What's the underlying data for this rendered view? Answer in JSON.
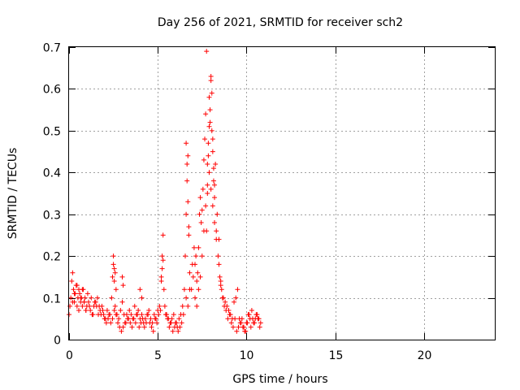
{
  "chart_data": {
    "type": "scatter",
    "title": "Day 256 of 2021, SRMTID for receiver sch2",
    "xlabel": "GPS time / hours",
    "ylabel": "SRMTID / TECUs",
    "xlim": [
      0,
      24
    ],
    "ylim": [
      0,
      0.7
    ],
    "x_ticks": [
      0,
      5,
      10,
      15,
      20
    ],
    "x_tick_labels": [
      "0",
      "5",
      "10",
      "15",
      "20"
    ],
    "y_ticks": [
      0,
      0.1,
      0.2,
      0.3,
      0.4,
      0.5,
      0.6,
      0.7
    ],
    "y_tick_labels": [
      "0",
      "0.1",
      "0.2",
      "0.3",
      "0.4",
      "0.5",
      "0.6",
      "0.7"
    ],
    "grid": true,
    "marker": "+",
    "color": "#ff0000",
    "series": [
      {
        "name": "sch2",
        "x": [
          0.0,
          0.1,
          0.15,
          0.2,
          0.25,
          0.3,
          0.35,
          0.4,
          0.45,
          0.5,
          0.55,
          0.6,
          0.65,
          0.7,
          0.75,
          0.8,
          0.85,
          0.9,
          0.95,
          1.0,
          1.1,
          1.2,
          1.3,
          1.4,
          1.5,
          1.6,
          1.7,
          1.8,
          1.9,
          2.0,
          2.1,
          2.2,
          2.3,
          2.4,
          2.45,
          2.5,
          2.55,
          2.6,
          2.7,
          2.8,
          2.9,
          3.0,
          3.1,
          3.2,
          3.3,
          3.4,
          3.5,
          3.6,
          3.7,
          3.8,
          3.9,
          4.0,
          4.1,
          4.2,
          4.3,
          4.4,
          4.5,
          4.6,
          4.7,
          4.8,
          4.9,
          5.0,
          5.1,
          5.2,
          5.25,
          5.3,
          5.35,
          5.4,
          5.5,
          5.6,
          5.7,
          5.8,
          5.9,
          6.0,
          6.1,
          6.2,
          6.3,
          6.4,
          6.5,
          6.55,
          6.6,
          6.65,
          6.7,
          6.75,
          6.8,
          6.9,
          7.0,
          7.05,
          7.1,
          7.15,
          7.2,
          7.25,
          7.3,
          7.35,
          7.4,
          7.45,
          7.5,
          7.55,
          7.6,
          7.65,
          7.7,
          7.75,
          7.8,
          7.85,
          7.9,
          7.95,
          8.0,
          8.05,
          8.1,
          8.15,
          8.2,
          8.25,
          8.3,
          8.35,
          8.4,
          8.45,
          8.5,
          8.55,
          8.6,
          8.7,
          8.8,
          8.9,
          9.0,
          9.1,
          9.2,
          9.3,
          9.4,
          9.5,
          9.6,
          9.7,
          9.8,
          9.9,
          10.0,
          10.1,
          10.2,
          10.3,
          10.4,
          10.5,
          10.6,
          10.7,
          10.8,
          0.05,
          0.2,
          0.3,
          0.45,
          0.55,
          0.65,
          0.75,
          0.85,
          0.95,
          1.05,
          1.15,
          1.25,
          1.35,
          1.45,
          1.55,
          1.65,
          1.75,
          1.85,
          1.95,
          2.05,
          2.15,
          2.25,
          2.35,
          2.45,
          2.55,
          2.65,
          2.75,
          2.85,
          2.95,
          3.05,
          3.15,
          3.25,
          3.35,
          3.45,
          3.55,
          3.65,
          3.75,
          3.85,
          3.95,
          4.05,
          4.15,
          4.25,
          4.35,
          4.45,
          4.55,
          4.65,
          4.75,
          4.85,
          4.95,
          5.05,
          5.15,
          5.45,
          5.55,
          5.65,
          5.75,
          5.85,
          5.95,
          6.05,
          6.15,
          6.25,
          6.35,
          6.45,
          6.6,
          6.7,
          6.8,
          6.95,
          7.1,
          7.2,
          7.3,
          7.4,
          7.5,
          7.6,
          7.7,
          7.8,
          7.9,
          8.0,
          8.1,
          8.2,
          8.3,
          8.45,
          8.55,
          8.65,
          8.75,
          8.85,
          8.95,
          9.05,
          9.15,
          9.25,
          9.35,
          9.45,
          9.55,
          9.65,
          9.75,
          9.85,
          9.95,
          10.05,
          10.15,
          10.25,
          10.35,
          10.45,
          10.55,
          10.65,
          10.75,
          2.5,
          2.55,
          2.6,
          2.65,
          3.0,
          3.05,
          4.0,
          4.1,
          5.2,
          5.25,
          5.3,
          6.6,
          6.65,
          6.7,
          6.75,
          7.75,
          7.8,
          7.85,
          7.9,
          7.95,
          8.0,
          8.05,
          8.1,
          8.15,
          8.2
        ],
        "y": [
          0.06,
          0.1,
          0.14,
          0.16,
          0.12,
          0.09,
          0.11,
          0.13,
          0.08,
          0.1,
          0.12,
          0.11,
          0.09,
          0.1,
          0.08,
          0.12,
          0.09,
          0.1,
          0.07,
          0.08,
          0.09,
          0.07,
          0.06,
          0.08,
          0.09,
          0.1,
          0.08,
          0.06,
          0.07,
          0.05,
          0.04,
          0.05,
          0.06,
          0.1,
          0.15,
          0.2,
          0.17,
          0.08,
          0.06,
          0.05,
          0.07,
          0.09,
          0.06,
          0.04,
          0.05,
          0.07,
          0.06,
          0.05,
          0.08,
          0.06,
          0.07,
          0.05,
          0.06,
          0.04,
          0.05,
          0.06,
          0.07,
          0.05,
          0.04,
          0.06,
          0.05,
          0.07,
          0.08,
          0.15,
          0.2,
          0.25,
          0.12,
          0.08,
          0.06,
          0.05,
          0.04,
          0.05,
          0.06,
          0.04,
          0.03,
          0.05,
          0.06,
          0.08,
          0.12,
          0.2,
          0.3,
          0.38,
          0.44,
          0.25,
          0.16,
          0.12,
          0.15,
          0.22,
          0.18,
          0.2,
          0.14,
          0.16,
          0.22,
          0.3,
          0.34,
          0.28,
          0.31,
          0.36,
          0.43,
          0.48,
          0.54,
          0.69,
          0.42,
          0.47,
          0.58,
          0.52,
          0.63,
          0.5,
          0.45,
          0.38,
          0.34,
          0.42,
          0.26,
          0.3,
          0.2,
          0.24,
          0.15,
          0.13,
          0.12,
          0.1,
          0.09,
          0.08,
          0.07,
          0.06,
          0.05,
          0.09,
          0.1,
          0.12,
          0.05,
          0.04,
          0.03,
          0.02,
          0.04,
          0.06,
          0.05,
          0.07,
          0.04,
          0.05,
          0.06,
          0.05,
          0.04,
          0.08,
          0.09,
          0.11,
          0.13,
          0.07,
          0.1,
          0.12,
          0.09,
          0.07,
          0.11,
          0.08,
          0.1,
          0.06,
          0.09,
          0.08,
          0.06,
          0.07,
          0.08,
          0.06,
          0.05,
          0.07,
          0.06,
          0.04,
          0.05,
          0.07,
          0.06,
          0.04,
          0.03,
          0.02,
          0.03,
          0.04,
          0.06,
          0.05,
          0.04,
          0.03,
          0.05,
          0.04,
          0.06,
          0.03,
          0.04,
          0.05,
          0.03,
          0.04,
          0.06,
          0.04,
          0.03,
          0.02,
          0.05,
          0.04,
          0.06,
          0.07,
          0.06,
          0.05,
          0.03,
          0.04,
          0.02,
          0.03,
          0.04,
          0.02,
          0.03,
          0.04,
          0.06,
          0.1,
          0.08,
          0.12,
          0.18,
          0.1,
          0.08,
          0.12,
          0.15,
          0.2,
          0.26,
          0.32,
          0.37,
          0.4,
          0.36,
          0.32,
          0.28,
          0.24,
          0.18,
          0.14,
          0.1,
          0.08,
          0.07,
          0.05,
          0.06,
          0.04,
          0.03,
          0.05,
          0.02,
          0.03,
          0.04,
          0.05,
          0.03,
          0.02,
          0.04,
          0.06,
          0.03,
          0.05,
          0.04,
          0.06,
          0.05,
          0.03,
          0.18,
          0.14,
          0.16,
          0.12,
          0.15,
          0.13,
          0.12,
          0.1,
          0.14,
          0.17,
          0.19,
          0.47,
          0.42,
          0.33,
          0.27,
          0.26,
          0.35,
          0.44,
          0.51,
          0.55,
          0.62,
          0.59,
          0.48,
          0.41,
          0.37
        ]
      }
    ]
  }
}
